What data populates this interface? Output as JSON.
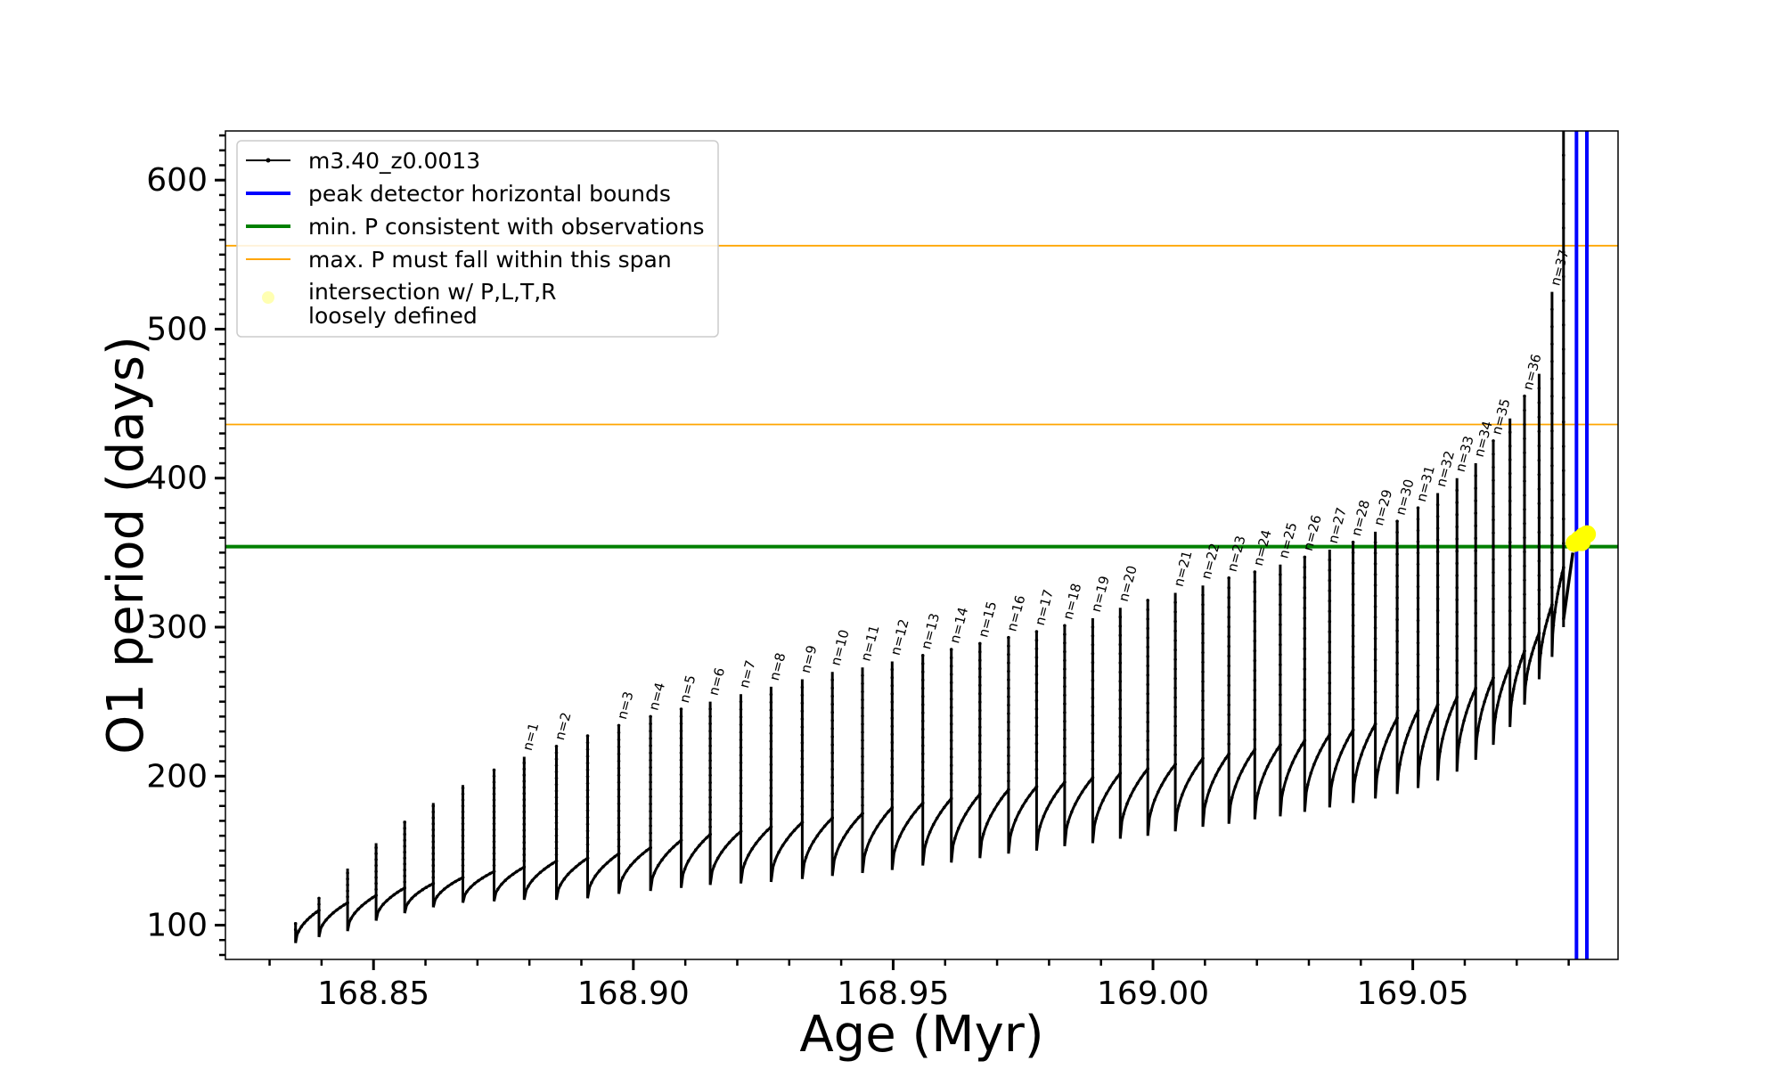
{
  "chart_data": {
    "type": "line",
    "xlabel": "Age (Myr)",
    "ylabel": "O1 period (days)",
    "xlim": [
      168.8215,
      169.0895
    ],
    "ylim": [
      77,
      633
    ],
    "x_ticks": [
      168.85,
      168.9,
      168.95,
      169.0,
      169.05
    ],
    "x_tick_labels": [
      "168.85",
      "168.90",
      "168.95",
      "169.00",
      "169.05"
    ],
    "y_ticks": [
      100,
      200,
      300,
      400,
      500,
      600
    ],
    "y_tick_labels": [
      "100",
      "200",
      "300",
      "400",
      "500",
      "600"
    ],
    "x_minor_step": 0.01,
    "y_minor_step": 10,
    "grid": false,
    "legend_placement": "upper-left",
    "legend": [
      {
        "label": "m3.40_z0.0013",
        "kind": "line-marker",
        "color": "#000000"
      },
      {
        "label": "peak detector horizontal bounds",
        "kind": "line",
        "color": "#0000ff"
      },
      {
        "label": "min. P consistent with observations",
        "kind": "line",
        "color": "#008000"
      },
      {
        "label": "max. P must fall within this span",
        "kind": "thin-line",
        "color": "#ffa500"
      },
      {
        "label": "intersection w/ P,L,T,R",
        "label2": "loosely defined",
        "kind": "dot",
        "color": "#ffff66"
      }
    ],
    "series": [
      {
        "name": "m3.40_z0.0013",
        "color": "#000000",
        "pulses": [
          {
            "x": 168.835,
            "base": 88,
            "pre": 97,
            "peak": 102
          },
          {
            "x": 168.8395,
            "base": 92,
            "pre": 110,
            "peak": 118
          },
          {
            "x": 168.845,
            "base": 96,
            "pre": 115,
            "peak": 138
          },
          {
            "x": 168.8505,
            "base": 103,
            "pre": 120,
            "peak": 155
          },
          {
            "x": 168.856,
            "base": 108,
            "pre": 125,
            "peak": 170
          },
          {
            "x": 168.8615,
            "base": 112,
            "pre": 128,
            "peak": 182
          },
          {
            "x": 168.8672,
            "base": 115,
            "pre": 132,
            "peak": 194
          },
          {
            "x": 168.8732,
            "base": 116,
            "pre": 136,
            "peak": 205
          },
          {
            "x": 168.879,
            "base": 117,
            "pre": 139,
            "peak": 213,
            "label": "n=1"
          },
          {
            "x": 168.8852,
            "base": 117,
            "pre": 143,
            "peak": 220,
            "label": "n=2"
          },
          {
            "x": 168.8912,
            "base": 118,
            "pre": 145,
            "peak": 227
          },
          {
            "x": 168.8972,
            "base": 121,
            "pre": 148,
            "peak": 234,
            "label": "n=3"
          },
          {
            "x": 168.9033,
            "base": 123,
            "pre": 152,
            "peak": 240,
            "label": "n=4"
          },
          {
            "x": 168.9092,
            "base": 125,
            "pre": 157,
            "peak": 245,
            "label": "n=5"
          },
          {
            "x": 168.9148,
            "base": 127,
            "pre": 161,
            "peak": 250,
            "label": "n=6"
          },
          {
            "x": 168.9207,
            "base": 128,
            "pre": 163,
            "peak": 255,
            "label": "n=7"
          },
          {
            "x": 168.9265,
            "base": 129,
            "pre": 166,
            "peak": 260,
            "label": "n=8"
          },
          {
            "x": 168.9325,
            "base": 131,
            "pre": 169,
            "peak": 265,
            "label": "n=9"
          },
          {
            "x": 168.9383,
            "base": 133,
            "pre": 172,
            "peak": 270,
            "label": "n=10"
          },
          {
            "x": 168.9441,
            "base": 135,
            "pre": 175,
            "peak": 273,
            "label": "n=11"
          },
          {
            "x": 168.9498,
            "base": 137,
            "pre": 179,
            "peak": 277,
            "label": "n=12"
          },
          {
            "x": 168.9557,
            "base": 140,
            "pre": 182,
            "peak": 281,
            "label": "n=13"
          },
          {
            "x": 168.9612,
            "base": 142,
            "pre": 185,
            "peak": 285,
            "label": "n=14"
          },
          {
            "x": 168.9667,
            "base": 145,
            "pre": 188,
            "peak": 289,
            "label": "n=15"
          },
          {
            "x": 168.9722,
            "base": 148,
            "pre": 191,
            "peak": 293,
            "label": "n=16"
          },
          {
            "x": 168.9776,
            "base": 150,
            "pre": 193,
            "peak": 297,
            "label": "n=17"
          },
          {
            "x": 168.983,
            "base": 153,
            "pre": 196,
            "peak": 301,
            "label": "n=18"
          },
          {
            "x": 168.9884,
            "base": 155,
            "pre": 199,
            "peak": 306,
            "label": "n=19"
          },
          {
            "x": 168.9937,
            "base": 158,
            "pre": 202,
            "peak": 313,
            "label": "n=20"
          },
          {
            "x": 168.999,
            "base": 160,
            "pre": 205,
            "peak": 318
          },
          {
            "x": 169.0043,
            "base": 163,
            "pre": 208,
            "peak": 323,
            "label": "n=21"
          },
          {
            "x": 169.0096,
            "base": 166,
            "pre": 212,
            "peak": 328,
            "label": "n=22"
          },
          {
            "x": 169.0146,
            "base": 168,
            "pre": 215,
            "peak": 333,
            "label": "n=23"
          },
          {
            "x": 169.0196,
            "base": 171,
            "pre": 218,
            "peak": 337,
            "label": "n=24"
          },
          {
            "x": 169.0245,
            "base": 173,
            "pre": 221,
            "peak": 342,
            "label": "n=25"
          },
          {
            "x": 169.0292,
            "base": 176,
            "pre": 224,
            "peak": 347,
            "label": "n=26"
          },
          {
            "x": 169.034,
            "base": 179,
            "pre": 228,
            "peak": 352,
            "label": "n=27"
          },
          {
            "x": 169.0385,
            "base": 182,
            "pre": 231,
            "peak": 357,
            "label": "n=28"
          },
          {
            "x": 169.0428,
            "base": 185,
            "pre": 235,
            "peak": 364,
            "label": "n=29"
          },
          {
            "x": 169.047,
            "base": 188,
            "pre": 239,
            "peak": 371,
            "label": "n=30"
          },
          {
            "x": 169.051,
            "base": 192,
            "pre": 244,
            "peak": 380,
            "label": "n=31"
          },
          {
            "x": 169.0548,
            "base": 197,
            "pre": 248,
            "peak": 390,
            "label": "n=32"
          },
          {
            "x": 169.0585,
            "base": 203,
            "pre": 253,
            "peak": 400,
            "label": "n=33"
          },
          {
            "x": 169.0621,
            "base": 211,
            "pre": 259,
            "peak": 410,
            "label": "n=34"
          },
          {
            "x": 169.0655,
            "base": 221,
            "pre": 266,
            "peak": 425,
            "label": "n=35"
          },
          {
            "x": 169.0687,
            "base": 233,
            "pre": 274,
            "peak": 440
          },
          {
            "x": 169.0715,
            "base": 248,
            "pre": 284,
            "peak": 455,
            "label": "n=36"
          },
          {
            "x": 169.0743,
            "base": 265,
            "pre": 296,
            "peak": 470
          },
          {
            "x": 169.0768,
            "base": 280,
            "pre": 315,
            "peak": 525,
            "label": "n=37"
          },
          {
            "x": 169.079,
            "base": 300,
            "pre": 340,
            "peak": 633
          }
        ],
        "final_rise": {
          "x0": 169.079,
          "y0": 305,
          "x1": 169.0808,
          "y1": 350
        }
      }
    ],
    "vertical_lines": [
      {
        "name": "peak detector horizontal bounds",
        "x": 169.0815,
        "color": "#0000ff"
      },
      {
        "name": "peak detector horizontal bounds",
        "x": 169.0835,
        "color": "#0000ff"
      }
    ],
    "horizontal_lines": [
      {
        "name": "min. P consistent with observations",
        "y": 354,
        "color": "#008000",
        "style": "thick"
      },
      {
        "name": "max. P must fall within this span",
        "y": 436,
        "color": "#ffa500",
        "style": "thin"
      },
      {
        "name": "max. P must fall within this span",
        "y": 556,
        "color": "#ffa500",
        "style": "thin"
      }
    ],
    "intersection": {
      "x": 169.0825,
      "y": 360,
      "color": "#ffff00"
    }
  }
}
